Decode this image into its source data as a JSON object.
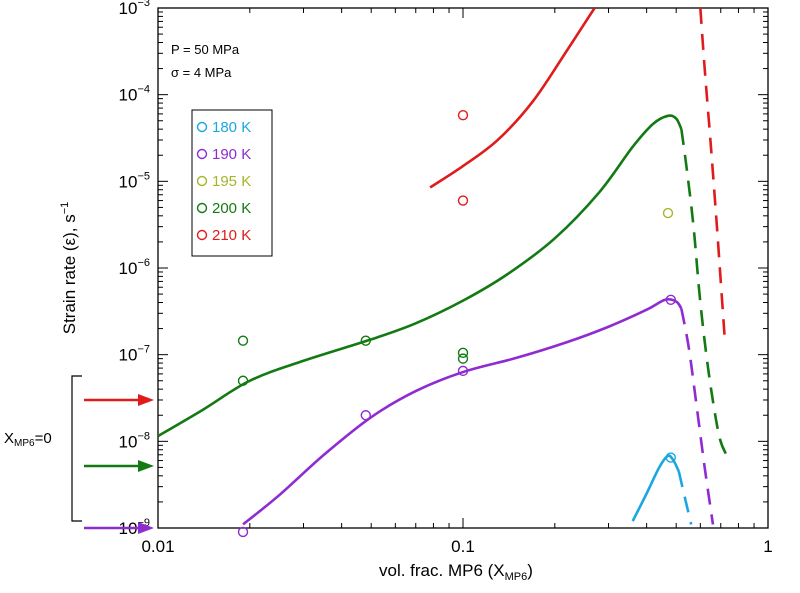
{
  "chart_data": {
    "type": "line",
    "xscale": "log",
    "yscale": "log",
    "xlim": [
      0.01,
      1
    ],
    "ylim": [
      1e-09,
      0.001
    ],
    "grid": false,
    "xlabel": "vol. frac. MP6 (X",
    "xlabel_sub": "MP6",
    "xlabel_end": ")",
    "ylabel": "Strain rate (ε), s",
    "ylabel_sup": "−1",
    "x_ticks": [
      {
        "value": 0.01,
        "label": "0.01"
      },
      {
        "value": 0.1,
        "label": "0.1"
      },
      {
        "value": 1,
        "label": "1"
      }
    ],
    "y_ticks": [
      {
        "value": 1e-09,
        "base": "10",
        "exp": "−9"
      },
      {
        "value": 1e-08,
        "base": "10",
        "exp": "−8"
      },
      {
        "value": 1e-07,
        "base": "10",
        "exp": "−7"
      },
      {
        "value": 1e-06,
        "base": "10",
        "exp": "−6"
      },
      {
        "value": 1e-05,
        "base": "10",
        "exp": "−5"
      },
      {
        "value": 0.0001,
        "base": "10",
        "exp": "−4"
      },
      {
        "value": 0.001,
        "base": "10",
        "exp": "−3"
      }
    ],
    "annotations": {
      "pressure": "P = 50 MPa",
      "stress": "σ = 4 MPa",
      "xmp6_label": "X",
      "xmp6_sub": "MP6",
      "xmp6_end": "=0"
    },
    "legend_position": "upper-left",
    "series": [
      {
        "name": "180 K",
        "color": "#1aa7e0",
        "points": [
          [
            0.48,
            6.5e-09
          ]
        ],
        "solid": [
          [
            0.36,
            1.2e-09
          ],
          [
            0.4,
            2.5e-09
          ],
          [
            0.44,
            5e-09
          ],
          [
            0.47,
            6.8e-09
          ],
          [
            0.49,
            6e-09
          ],
          [
            0.51,
            4.5e-09
          ]
        ],
        "dashed": [
          [
            0.51,
            4.5e-09
          ],
          [
            0.53,
            2.5e-09
          ],
          [
            0.56,
            1.1e-09
          ]
        ],
        "xmp6_zero": null
      },
      {
        "name": "190 K",
        "color": "#8e2bd1",
        "points": [
          [
            0.019,
            9e-10
          ],
          [
            0.048,
            2e-08
          ],
          [
            0.1,
            6.5e-08
          ],
          [
            0.48,
            4.3e-07
          ]
        ],
        "solid": [
          [
            0.019,
            1.1e-09
          ],
          [
            0.025,
            2.4e-09
          ],
          [
            0.035,
            7e-09
          ],
          [
            0.05,
            1.9e-08
          ],
          [
            0.07,
            3.8e-08
          ],
          [
            0.1,
            6.3e-08
          ],
          [
            0.15,
            9.2e-08
          ],
          [
            0.22,
            1.4e-07
          ],
          [
            0.3,
            2.1e-07
          ],
          [
            0.4,
            3.3e-07
          ],
          [
            0.46,
            4.3e-07
          ],
          [
            0.5,
            4.1e-07
          ],
          [
            0.52,
            3.4e-07
          ]
        ],
        "dashed": [
          [
            0.52,
            3.4e-07
          ],
          [
            0.55,
            1.2e-07
          ],
          [
            0.58,
            3e-08
          ],
          [
            0.62,
            5e-09
          ],
          [
            0.66,
            1.1e-09
          ]
        ],
        "xmp6_zero": 1e-09
      },
      {
        "name": "195 K",
        "color": "#a6b52a",
        "points": [
          [
            0.47,
            4.3e-06
          ]
        ],
        "solid": [],
        "dashed": [],
        "xmp6_zero": null
      },
      {
        "name": "200 K",
        "color": "#137a13",
        "points": [
          [
            0.019,
            1.45e-07
          ],
          [
            0.019,
            5e-08
          ],
          [
            0.048,
            1.45e-07
          ],
          [
            0.1,
            9e-08
          ],
          [
            0.1,
            1.05e-07
          ]
        ],
        "solid": [
          [
            0.01,
            1.15e-08
          ],
          [
            0.014,
            2.3e-08
          ],
          [
            0.02,
            5e-08
          ],
          [
            0.03,
            8.5e-08
          ],
          [
            0.05,
            1.5e-07
          ],
          [
            0.07,
            2.3e-07
          ],
          [
            0.1,
            4.2e-07
          ],
          [
            0.14,
            8.5e-07
          ],
          [
            0.2,
            2.2e-06
          ],
          [
            0.28,
            7.5e-06
          ],
          [
            0.36,
            2.5e-05
          ],
          [
            0.42,
            4.6e-05
          ],
          [
            0.47,
            5.7e-05
          ],
          [
            0.5,
            5.3e-05
          ],
          [
            0.52,
            4e-05
          ]
        ],
        "dashed": [
          [
            0.52,
            4e-05
          ],
          [
            0.54,
            1.5e-05
          ],
          [
            0.57,
            3e-06
          ],
          [
            0.6,
            4e-07
          ],
          [
            0.64,
            6e-08
          ],
          [
            0.69,
            1.2e-08
          ],
          [
            0.73,
            7e-09
          ]
        ],
        "xmp6_zero": 5.2e-09
      },
      {
        "name": "210 K",
        "color": "#e01b1b",
        "points": [
          [
            0.1,
            5.8e-05
          ],
          [
            0.1,
            6e-06
          ]
        ],
        "solid": [
          [
            0.078,
            8.5e-06
          ],
          [
            0.1,
            1.5e-05
          ],
          [
            0.13,
            3e-05
          ],
          [
            0.17,
            8.5e-05
          ],
          [
            0.22,
            0.00033
          ],
          [
            0.27,
            0.001
          ]
        ],
        "dashed": [
          [
            0.6,
            0.001
          ],
          [
            0.62,
            0.0002
          ],
          [
            0.65,
            2.5e-05
          ],
          [
            0.68,
            3e-06
          ],
          [
            0.7,
            7e-07
          ],
          [
            0.72,
            1.7e-07
          ]
        ],
        "xmp6_zero": 3e-08
      }
    ]
  }
}
